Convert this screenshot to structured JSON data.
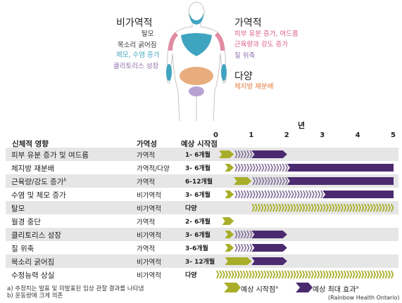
{
  "body_labels": {
    "left_group_title": "비가역적",
    "left_items": [
      {
        "text": "탈모",
        "color": "#333333"
      },
      {
        "text": "목소리 굵어짐",
        "color": "#333333"
      },
      {
        "text": "체모, 수염 증가",
        "color": "#3fa4c0"
      },
      {
        "text": "클리토리스 성장",
        "color": "#8a6aa8"
      }
    ],
    "right_group_title": "가역적",
    "right_items": [
      {
        "text": "피부 유분 증가, 여드름",
        "color": "#d95b7f"
      },
      {
        "text": "근육량과 강도 증가",
        "color": "#d95b7f"
      },
      {
        "text": "질 위축",
        "color": "#8a6aa8"
      }
    ],
    "right_group2_title": "다양",
    "right_group2_items": [
      {
        "text": "체지방 재분배",
        "color": "#e07a3a"
      }
    ]
  },
  "table": {
    "headers": {
      "effect": "신체적 영향",
      "reversibility": "가역성",
      "onset": "예상 시작점"
    },
    "axis_title": "년",
    "axis_ticks": [
      "0",
      "1",
      "2",
      "3",
      "4",
      "5"
    ],
    "rows": [
      {
        "effect": "피부 유분 증가 및 여드름",
        "reversibility": "가역적",
        "onset": "1- 6개월",
        "onset_start": 0.083,
        "onset_end": 0.5,
        "max_start": 1,
        "max_end": 2,
        "max_open": false
      },
      {
        "effect": "체지방 재분배",
        "reversibility": "가역적/다양",
        "onset": "3- 6개월",
        "onset_start": 0.25,
        "onset_end": 0.5,
        "max_start": 2,
        "max_end": 5,
        "max_open": true
      },
      {
        "effect": "근육량/강도 증가",
        "effect_sup": "b",
        "reversibility": "가역적",
        "onset": "6-12개월",
        "onset_start": 0.5,
        "onset_end": 1,
        "max_start": 2,
        "max_end": 5,
        "max_open": true
      },
      {
        "effect": "수염 및 체모 증가",
        "reversibility": "비가역적",
        "onset": "3- 6개월",
        "onset_start": 0.25,
        "onset_end": 0.5,
        "max_start": 3,
        "max_end": 5,
        "max_open": true
      },
      {
        "effect": "탈모",
        "reversibility": "비가역적",
        "onset": "다양",
        "onset_start": 1,
        "onset_end": 5,
        "onset_open": true
      },
      {
        "effect": "월경 중단",
        "reversibility": "가역적",
        "onset": "2- 6개월",
        "onset_start": 0.17,
        "onset_end": 0.5
      },
      {
        "effect": "클리토리스 성장",
        "reversibility": "비가역적",
        "onset": "3- 6개월",
        "onset_start": 0.25,
        "onset_end": 0.5,
        "max_start": 1,
        "max_end": 2,
        "max_open": false
      },
      {
        "effect": "질 위축",
        "reversibility": "가역적",
        "onset": "3-6개월",
        "onset_start": 0.25,
        "onset_end": 0.5,
        "max_start": 1,
        "max_end": 2,
        "max_open": false
      },
      {
        "effect": "목소리 굵어짐",
        "reversibility": "비가역적",
        "onset": "3- 12개월",
        "onset_start": 0.25,
        "onset_end": 1,
        "max_start": 1,
        "max_end": 2,
        "max_open": false
      },
      {
        "effect": "수정능력 상실",
        "reversibility": "비가역적",
        "onset": "다양",
        "onset_start": 0,
        "onset_end": 5,
        "onset_open": true
      }
    ]
  },
  "footnotes": {
    "a": "a) 추정치는 발표 및 미발표된 임상 관찰 결과를 나타냄",
    "b": "b) 운동량에 크게 의존"
  },
  "legend": {
    "onset_label": "예상 시작점",
    "onset_sup": "a",
    "max_label": "예상 최대 효과",
    "max_sup": "a"
  },
  "source": "(Rainbow Health Ontario)",
  "colors": {
    "onset_green": "#a9ae2a",
    "max_purple": "#4b2a6f",
    "row_shade": "#e6e6e6"
  }
}
